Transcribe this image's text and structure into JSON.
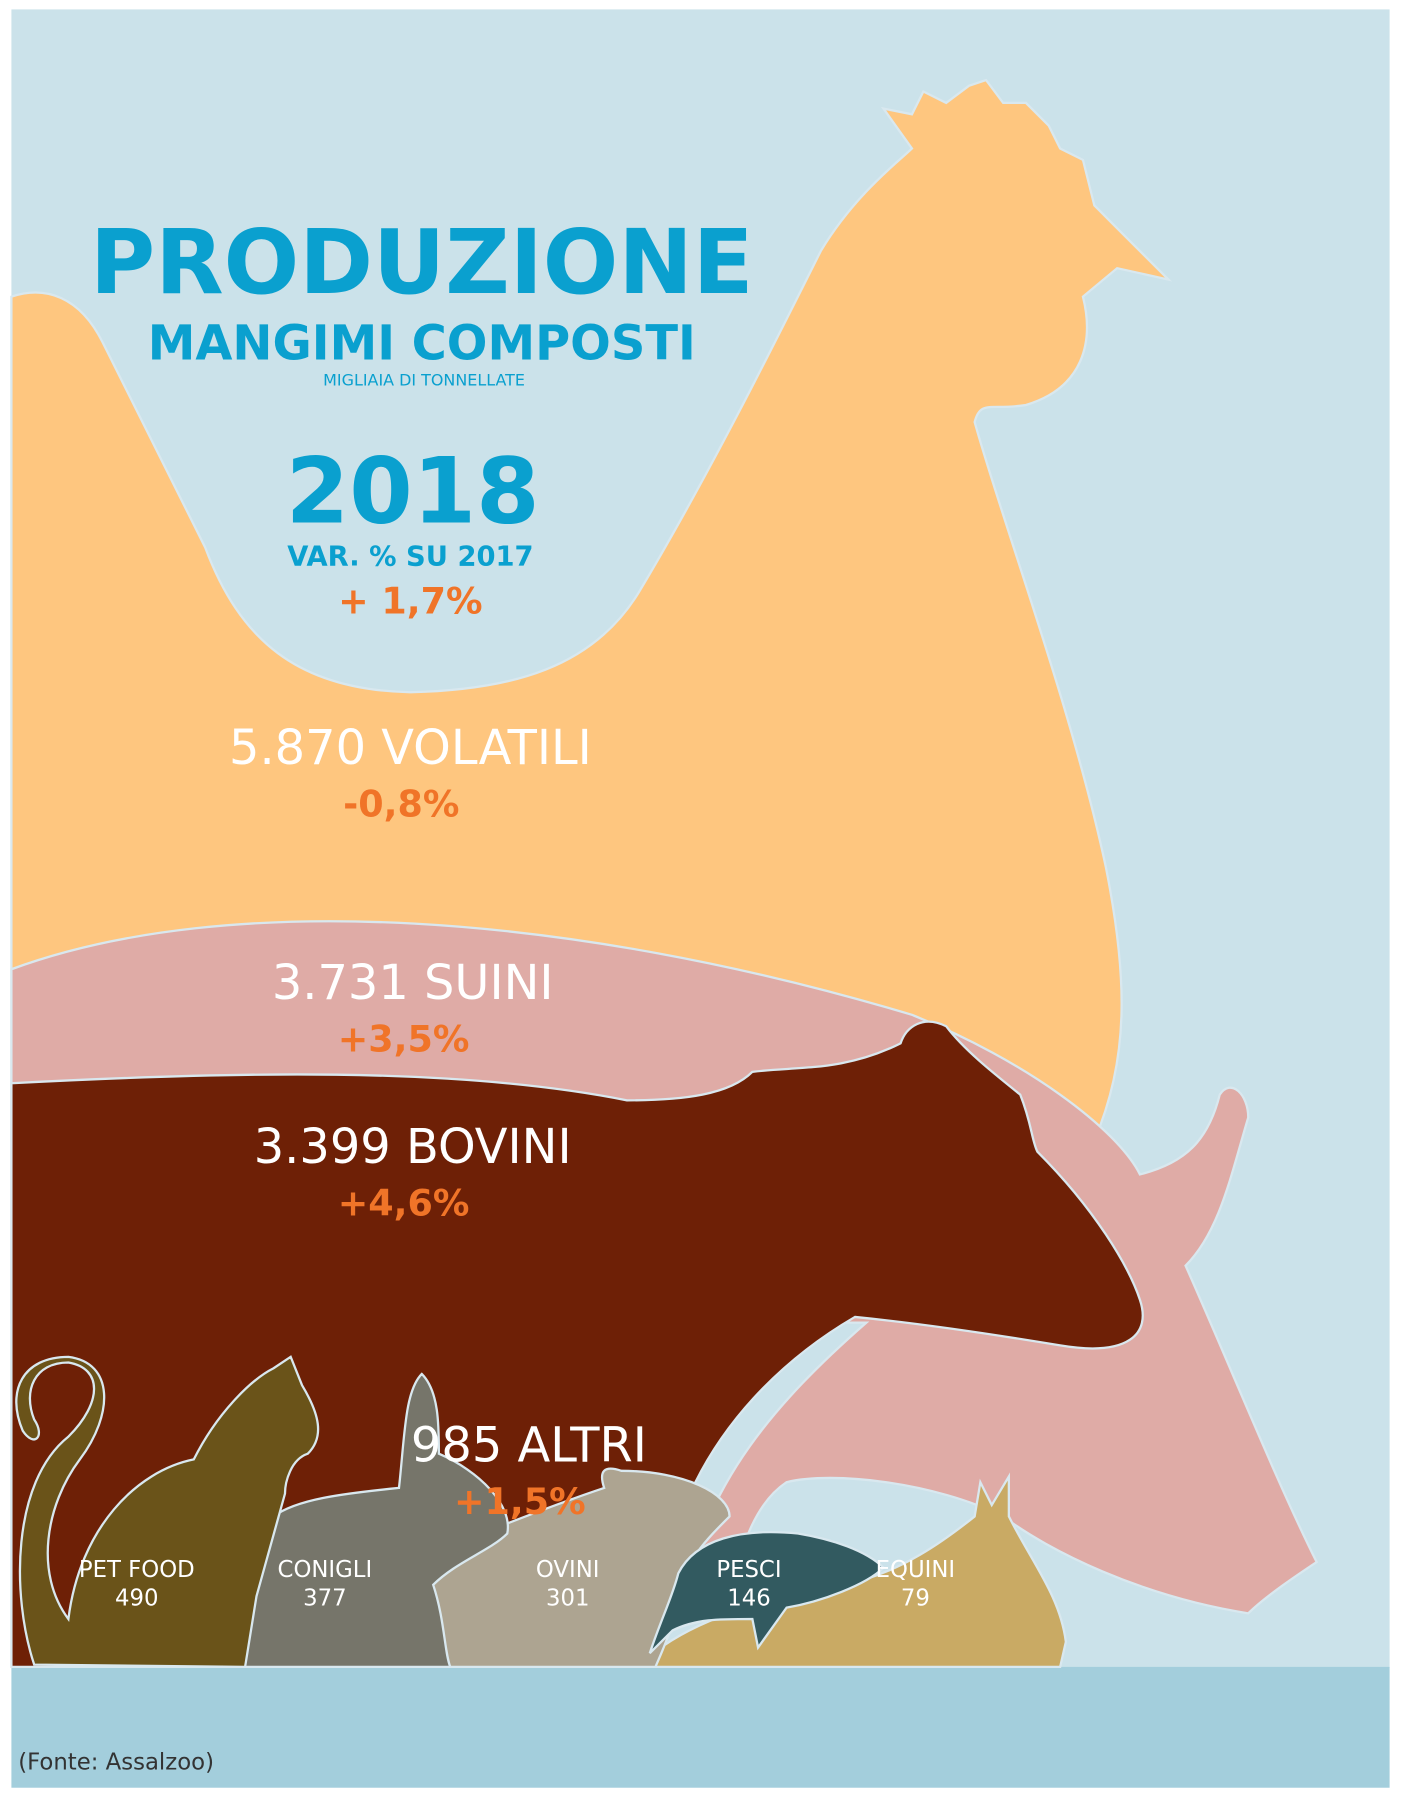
{
  "header": {
    "title": "PRODUZIONE",
    "subtitle": "MANGIMI COMPOSTI",
    "unit": "MIGLIAIA DI TONNELLATE"
  },
  "year": {
    "label": "2018",
    "change_label": "VAR. % SU 2017",
    "change": "+ 1,7%"
  },
  "groups": [
    {
      "value": "5.870",
      "name": "VOLATILI",
      "change": "-0,8%"
    },
    {
      "value": "3.731",
      "name": "SUINI",
      "change": "+3,5%"
    },
    {
      "value": "3.399",
      "name": "BOVINI",
      "change": "+4,6%"
    },
    {
      "value": "985",
      "name": "ALTRI",
      "change": "+1,5%"
    }
  ],
  "others": [
    {
      "name": "PET FOOD",
      "value": "490"
    },
    {
      "name": "CONIGLI",
      "value": "377"
    },
    {
      "name": "OVINI",
      "value": "301"
    },
    {
      "name": "PESCI",
      "value": "146"
    },
    {
      "name": "EQUINI",
      "value": "79"
    }
  ],
  "source": "(Fonte: Assalzoo)"
}
